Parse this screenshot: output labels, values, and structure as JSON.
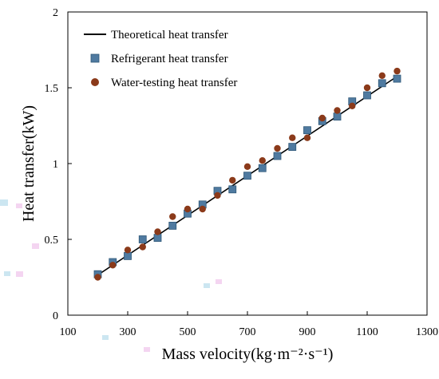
{
  "chart_data": {
    "type": "scatter",
    "title": "",
    "xlabel": "Mass velocity(kg·m⁻²·s⁻¹)",
    "ylabel": "Heat transfer(kW)",
    "xlim": [
      100,
      1300
    ],
    "ylim": [
      0,
      2
    ],
    "xticks": [
      "100",
      "300",
      "500",
      "700",
      "900",
      "1100",
      "1300"
    ],
    "yticks": [
      "0",
      "0.5",
      "1",
      "1.5",
      "2"
    ],
    "grid": false,
    "legend_position": "top-left",
    "series": [
      {
        "name": "Theoretical heat transfer",
        "kind": "line",
        "color": "#000000",
        "x": [
          200,
          1200
        ],
        "y": [
          0.265,
          1.575
        ]
      },
      {
        "name": "Refrigerant heat transfer",
        "kind": "square",
        "color": "#4f7aa0",
        "x": [
          200,
          250,
          300,
          350,
          400,
          450,
          500,
          550,
          600,
          650,
          700,
          750,
          800,
          850,
          900,
          950,
          1000,
          1050,
          1100,
          1150,
          1200
        ],
        "y": [
          0.27,
          0.35,
          0.39,
          0.5,
          0.51,
          0.59,
          0.67,
          0.73,
          0.82,
          0.83,
          0.92,
          0.97,
          1.05,
          1.11,
          1.22,
          1.28,
          1.31,
          1.41,
          1.45,
          1.53,
          1.56
        ]
      },
      {
        "name": "Water-testing heat transfer",
        "kind": "circle",
        "color": "#8b3a1a",
        "x": [
          200,
          250,
          300,
          350,
          400,
          450,
          500,
          550,
          600,
          650,
          700,
          750,
          800,
          850,
          900,
          950,
          1000,
          1050,
          1100,
          1150,
          1200
        ],
        "y": [
          0.25,
          0.33,
          0.43,
          0.45,
          0.55,
          0.65,
          0.7,
          0.7,
          0.79,
          0.89,
          0.98,
          1.02,
          1.1,
          1.17,
          1.17,
          1.3,
          1.35,
          1.38,
          1.5,
          1.58,
          1.61
        ]
      }
    ]
  }
}
